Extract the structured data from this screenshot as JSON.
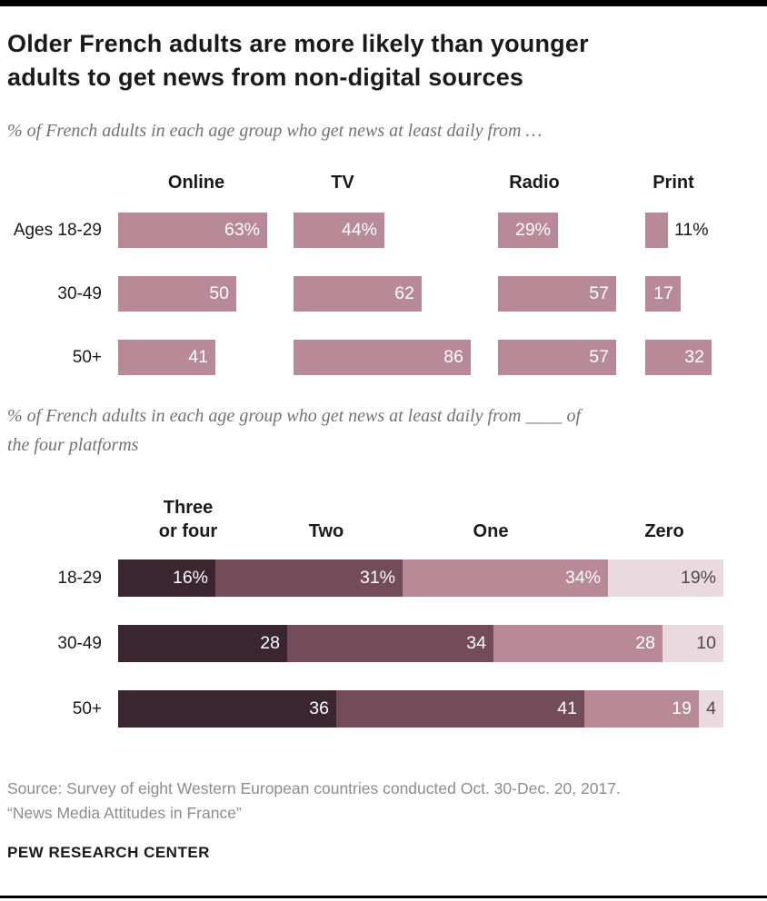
{
  "page": {
    "title_line1": "Older French adults are more likely than younger",
    "title_line2": "adults to get news from non-digital sources",
    "subtitle1": "% of French adults in each age group who get news at least daily from …",
    "subtitle2_line1": "% of French adults in each age group who get news at least daily from ____ of",
    "subtitle2_line2": "the four platforms",
    "source_line1": "Source: Survey of eight Western European countries conducted Oct. 30-Dec. 20, 2017.",
    "source_line2": "“News Media Attitudes in France”",
    "footer": "PEW RESEARCH CENTER"
  },
  "colors": {
    "bar_fill": "#b88a97",
    "stack_three_or_four": "#3b252e",
    "stack_two": "#744c59",
    "stack_one": "#b88a97",
    "stack_zero": "#e8dade",
    "label_on_dark": "#ffffff",
    "label_on_light": "#4a4a4a"
  },
  "chart_data": [
    {
      "type": "bar",
      "orientation": "horizontal",
      "title": "% of French adults in each age group who get news at least daily from …",
      "categories": [
        "Ages 18-29",
        "30-49",
        "50+"
      ],
      "groups": [
        "Online",
        "TV",
        "Radio",
        "Print"
      ],
      "series": [
        {
          "name": "Online",
          "values": [
            63,
            50,
            41
          ],
          "labels": [
            "63%",
            "50",
            "41"
          ]
        },
        {
          "name": "TV",
          "values": [
            44,
            62,
            86
          ],
          "labels": [
            "44%",
            "62",
            "86"
          ]
        },
        {
          "name": "Radio",
          "values": [
            29,
            57,
            57
          ],
          "labels": [
            "29%",
            "57",
            "57"
          ]
        },
        {
          "name": "Print",
          "values": [
            11,
            17,
            32
          ],
          "labels": [
            "11%",
            "17",
            "32"
          ]
        }
      ],
      "xlim": [
        0,
        100
      ],
      "grid": false,
      "legend": "none"
    },
    {
      "type": "stacked-bar",
      "orientation": "horizontal",
      "title": "% of French adults in each age group who get news at least daily from ____ of the four platforms",
      "categories": [
        "18-29",
        "30-49",
        "50+"
      ],
      "segments": [
        "Three or four",
        "Two",
        "One",
        "Zero"
      ],
      "series": [
        {
          "name": "Three or four",
          "values": [
            16,
            28,
            36
          ],
          "labels": [
            "16%",
            "28",
            "36"
          ]
        },
        {
          "name": "Two",
          "values": [
            31,
            34,
            41
          ],
          "labels": [
            "31%",
            "34",
            "41"
          ]
        },
        {
          "name": "One",
          "values": [
            34,
            28,
            19
          ],
          "labels": [
            "34%",
            "28",
            "19"
          ]
        },
        {
          "name": "Zero",
          "values": [
            19,
            10,
            4
          ],
          "labels": [
            "19%",
            "10",
            "4"
          ]
        }
      ],
      "xlim": [
        0,
        100
      ],
      "grid": false,
      "legend": "none"
    }
  ]
}
